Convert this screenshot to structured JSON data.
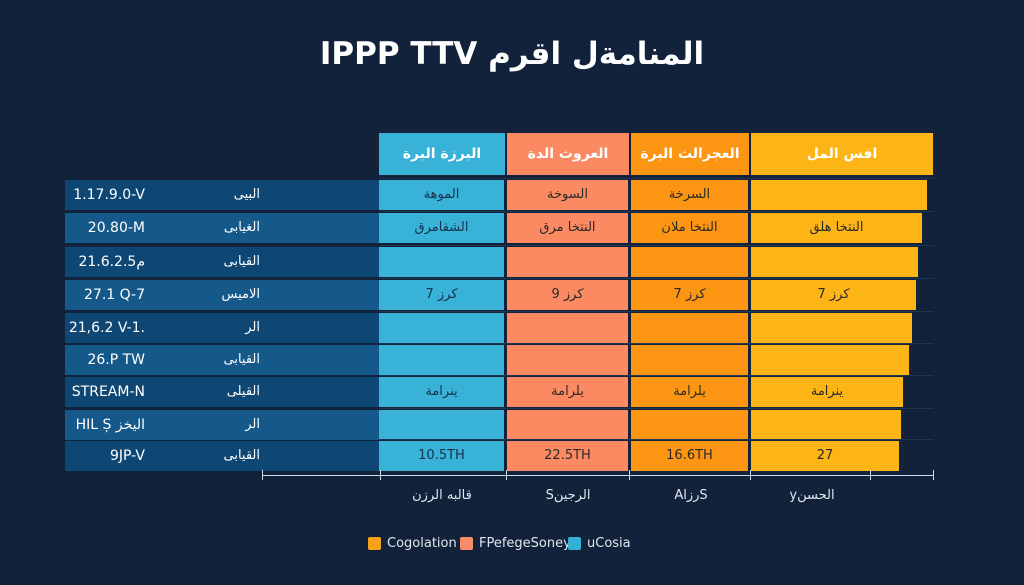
{
  "title": "IPPP TTV المنامةل اقرم",
  "colors": {
    "background": "#12223a",
    "blue": "#38b2d6",
    "salmon": "#fb8a63",
    "orange": "#fc9511",
    "yellow": "#fdb515",
    "row_dark": "#0e4774",
    "row_light": "#15588a"
  },
  "chart_data": {
    "type": "table",
    "columns": [
      "البرزة البرة",
      "العروث الدة",
      "العجرالث البرة",
      "افس المل"
    ],
    "rows": [
      {
        "version": "1.17.9.0-V",
        "label": "البيى",
        "cells": [
          "الموهة",
          "السوخة",
          "السرخة",
          ""
        ],
        "bar_end": 0.82
      },
      {
        "version": "20.80-M",
        "label": "الغيابى",
        "cells": [
          "الشقامرق",
          "النتخا مرق",
          "النتخا ملان",
          "النتخا هلق"
        ],
        "bar_end": 0.8
      },
      {
        "version": "21.6.2.5م",
        "label": "القيابى",
        "cells": [
          "",
          "",
          "",
          ""
        ],
        "bar_end": 0.78
      },
      {
        "version": "27.1 Q-7",
        "label": "الاميس",
        "cells": [
          "كرز 7",
          "كرز 9",
          "كرز 7",
          "كرز 7"
        ],
        "bar_end": 0.77
      },
      {
        "version": "21,6.2 V-1.",
        "label": "الر",
        "cells": [
          "",
          "",
          "",
          ""
        ],
        "bar_end": 0.75
      },
      {
        "version": "26.P TW",
        "label": "القيابى",
        "cells": [
          "",
          "",
          "",
          ""
        ],
        "bar_end": 0.74
      },
      {
        "version": "STREAM-N",
        "label": "القيلى",
        "cells": [
          "ينرامة",
          "يلرامة",
          "يلرامة",
          "ينرامة"
        ],
        "bar_end": 0.71
      },
      {
        "version": "HIL Ș اليخز",
        "label": "الر",
        "cells": [
          "",
          "",
          "",
          ""
        ],
        "bar_end": 0.7
      },
      {
        "version": "9JP-V",
        "label": "القيابى",
        "cells": [
          "10.5TH",
          "22.5TH",
          "16.6TH",
          "27"
        ],
        "bar_end": 0.69
      }
    ],
    "axis_labels": [
      "قالبه الرزن",
      "Sالرجين",
      "AlرزS",
      "yالحسن"
    ],
    "legend": [
      {
        "name": "Cogolation",
        "color": "#f7a21b"
      },
      {
        "name": "FPefegeSoney",
        "color": "#f98c68"
      },
      {
        "name": "uCosia",
        "color": "#34b0d4"
      }
    ]
  }
}
